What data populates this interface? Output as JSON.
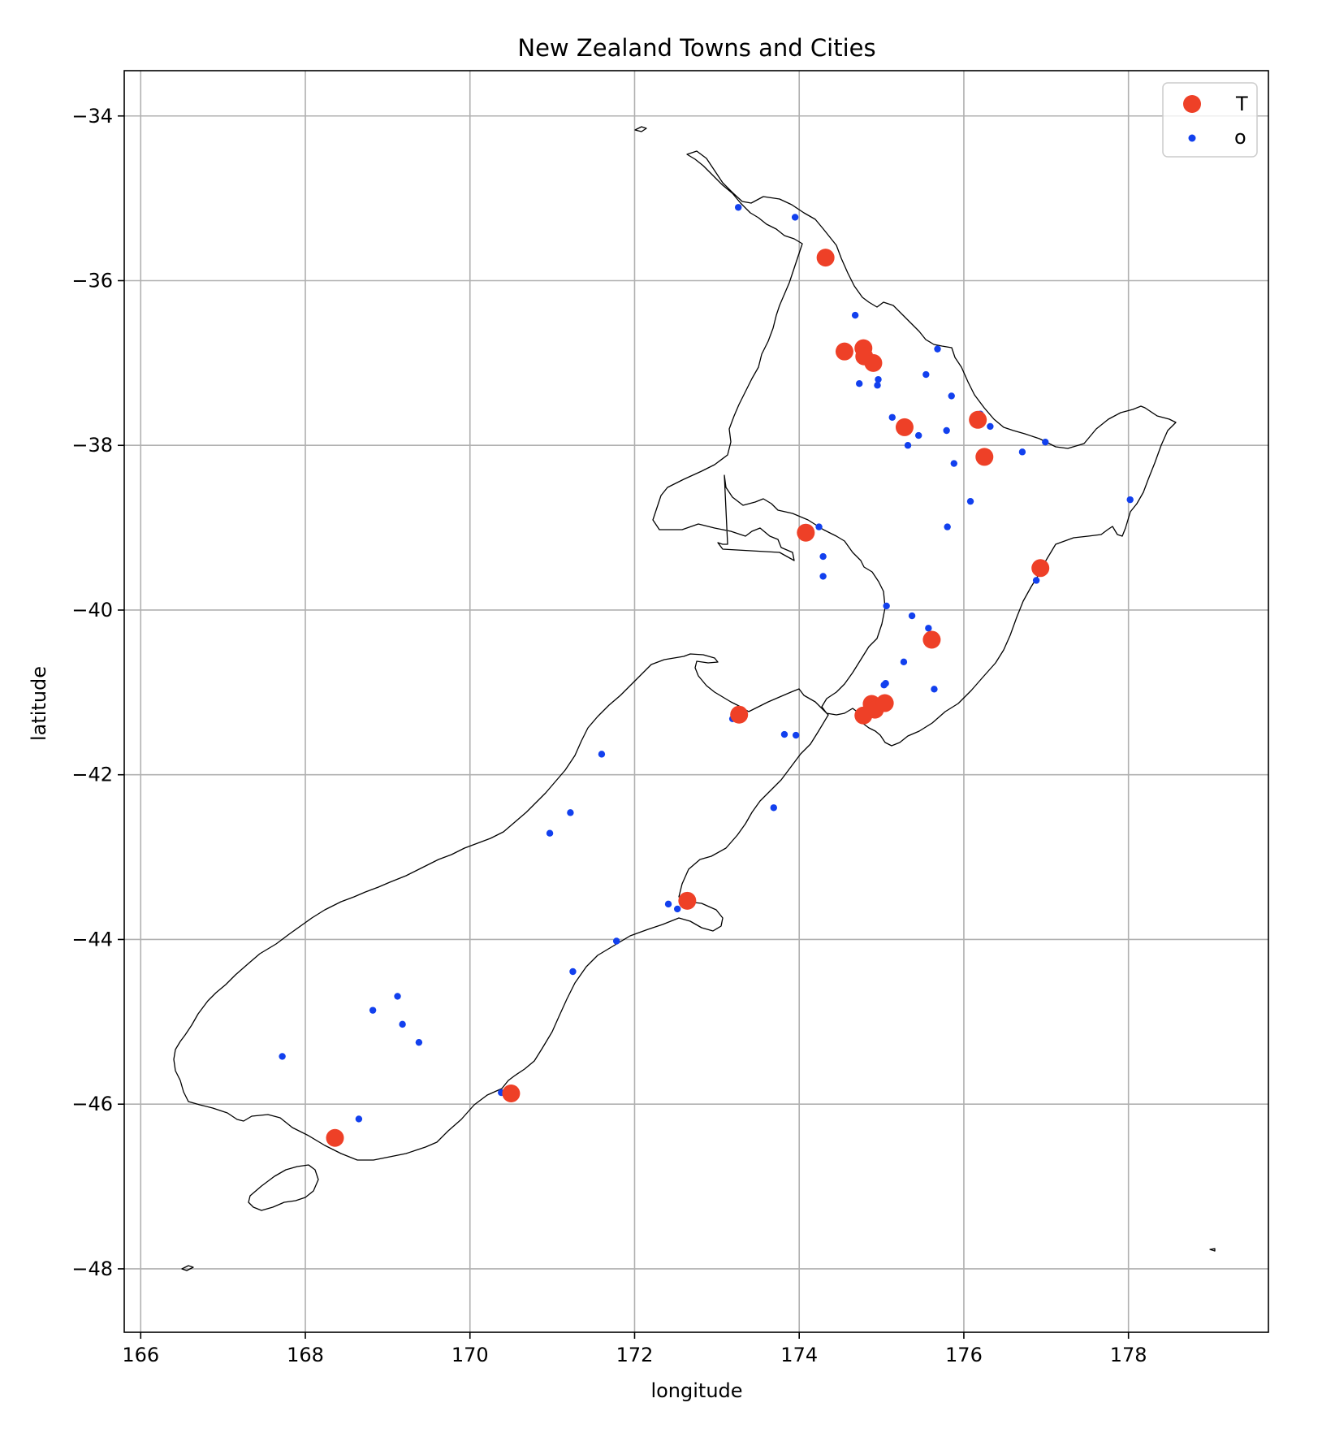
{
  "chart_data": {
    "type": "scatter",
    "title": "New Zealand Towns and Cities",
    "xlabel": "longitude",
    "ylabel": "latitude",
    "xlim": [
      165.8,
      179.7
    ],
    "ylim": [
      -48.77,
      -33.45
    ],
    "xticks": [
      166,
      168,
      170,
      172,
      174,
      176,
      178
    ],
    "yticks": [
      -34,
      -36,
      -38,
      -40,
      -42,
      -44,
      -46,
      -48
    ],
    "xtick_labels": [
      "166",
      "168",
      "170",
      "172",
      "174",
      "176",
      "178"
    ],
    "ytick_labels": [
      "−34",
      "−36",
      "−38",
      "−40",
      "−42",
      "−44",
      "−46",
      "−48"
    ],
    "grid": true,
    "legend_position": "upper right",
    "background_map": "New Zealand coastline",
    "series": [
      {
        "name": "T",
        "color": "#ee4027",
        "marker": "large-circle",
        "points": [
          [
            174.32,
            -35.72
          ],
          [
            174.55,
            -36.86
          ],
          [
            174.78,
            -36.82
          ],
          [
            174.79,
            -36.92
          ],
          [
            174.9,
            -37.0
          ],
          [
            175.28,
            -37.78
          ],
          [
            176.17,
            -37.69
          ],
          [
            176.25,
            -38.14
          ],
          [
            174.08,
            -39.06
          ],
          [
            176.93,
            -39.49
          ],
          [
            175.61,
            -40.36
          ],
          [
            173.27,
            -41.27
          ],
          [
            174.88,
            -41.14
          ],
          [
            174.92,
            -41.21
          ],
          [
            175.04,
            -41.13
          ],
          [
            174.78,
            -41.28
          ],
          [
            172.64,
            -43.53
          ],
          [
            170.5,
            -45.87
          ],
          [
            168.36,
            -46.41
          ]
        ]
      },
      {
        "name": "o",
        "color": "#1240ee",
        "marker": "small-dot",
        "points": [
          [
            173.26,
            -35.11
          ],
          [
            173.95,
            -35.23
          ],
          [
            174.68,
            -36.42
          ],
          [
            175.68,
            -36.83
          ],
          [
            174.73,
            -37.25
          ],
          [
            174.96,
            -37.2
          ],
          [
            174.95,
            -37.27
          ],
          [
            175.54,
            -37.14
          ],
          [
            175.85,
            -37.4
          ],
          [
            176.2,
            -37.62
          ],
          [
            176.32,
            -37.77
          ],
          [
            176.99,
            -37.96
          ],
          [
            175.13,
            -37.66
          ],
          [
            175.45,
            -37.88
          ],
          [
            175.32,
            -38.0
          ],
          [
            175.79,
            -37.82
          ],
          [
            176.71,
            -38.08
          ],
          [
            175.88,
            -38.22
          ],
          [
            176.08,
            -38.68
          ],
          [
            175.8,
            -38.99
          ],
          [
            174.24,
            -38.99
          ],
          [
            174.29,
            -39.35
          ],
          [
            174.29,
            -39.59
          ],
          [
            178.02,
            -38.66
          ],
          [
            176.88,
            -39.64
          ],
          [
            175.06,
            -39.95
          ],
          [
            175.37,
            -40.07
          ],
          [
            175.57,
            -40.22
          ],
          [
            175.27,
            -40.63
          ],
          [
            175.03,
            -40.91
          ],
          [
            175.05,
            -40.89
          ],
          [
            175.64,
            -40.96
          ],
          [
            173.19,
            -41.32
          ],
          [
            173.82,
            -41.51
          ],
          [
            173.96,
            -41.52
          ],
          [
            171.6,
            -41.75
          ],
          [
            171.22,
            -42.46
          ],
          [
            170.97,
            -42.71
          ],
          [
            173.69,
            -42.4
          ],
          [
            172.41,
            -43.57
          ],
          [
            172.52,
            -43.63
          ],
          [
            171.78,
            -44.02
          ],
          [
            171.25,
            -44.39
          ],
          [
            168.82,
            -44.86
          ],
          [
            169.12,
            -44.69
          ],
          [
            169.18,
            -45.03
          ],
          [
            169.38,
            -45.25
          ],
          [
            167.72,
            -45.42
          ],
          [
            168.65,
            -46.18
          ],
          [
            170.38,
            -45.86
          ]
        ]
      }
    ]
  }
}
